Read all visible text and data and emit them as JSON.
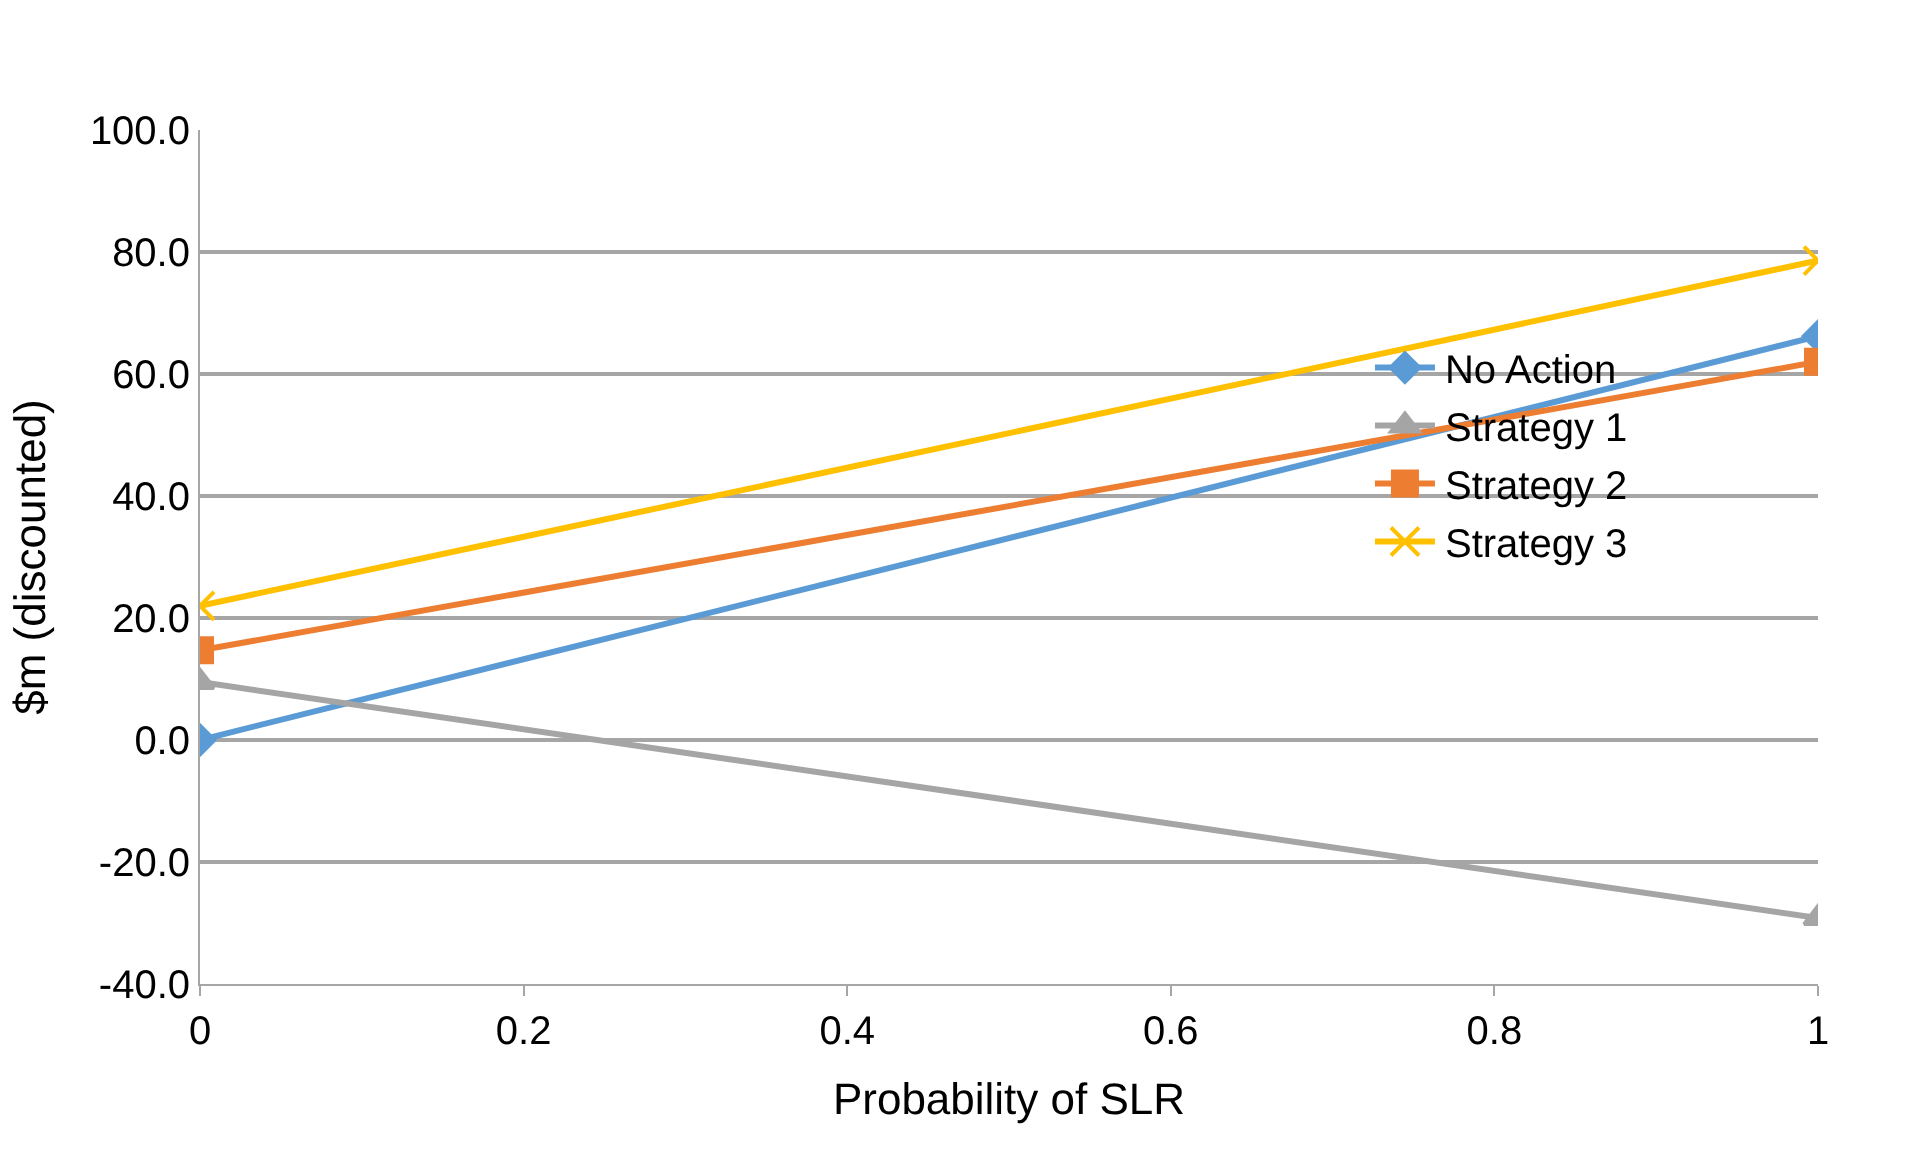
{
  "chart_data": {
    "type": "line",
    "xlabel": "Probability of SLR",
    "ylabel": "$m (discounted)",
    "x": [
      0,
      1
    ],
    "series": [
      {
        "name": "No Action",
        "color": "#5b9bd5",
        "marker": "diamond",
        "values": [
          0.0,
          66.2
        ]
      },
      {
        "name": "Strategy 1",
        "color": "#a5a5a5",
        "marker": "triangle",
        "values": [
          9.5,
          -29.2
        ]
      },
      {
        "name": "Strategy 2",
        "color": "#ed7d31",
        "marker": "square",
        "values": [
          14.7,
          62.0
        ]
      },
      {
        "name": "Strategy 3",
        "color": "#ffc000",
        "marker": "cross",
        "values": [
          22.0,
          78.6
        ]
      }
    ],
    "xlim": [
      0,
      1
    ],
    "xticks": [
      0,
      0.2,
      0.4,
      0.6,
      0.8,
      1
    ],
    "ylim": [
      -40,
      100
    ],
    "yticks": [
      {
        "value": -40,
        "label": "-40.0"
      },
      {
        "value": -20,
        "label": "-20.0"
      },
      {
        "value": 0,
        "label": "0.0"
      },
      {
        "value": 20,
        "label": "20.0"
      },
      {
        "value": 40,
        "label": "40.0"
      },
      {
        "value": 60,
        "label": "60.0"
      },
      {
        "value": 80,
        "label": "80.0"
      },
      {
        "value": 100,
        "label": "100.0"
      }
    ],
    "grid": "y",
    "legend": "right"
  }
}
